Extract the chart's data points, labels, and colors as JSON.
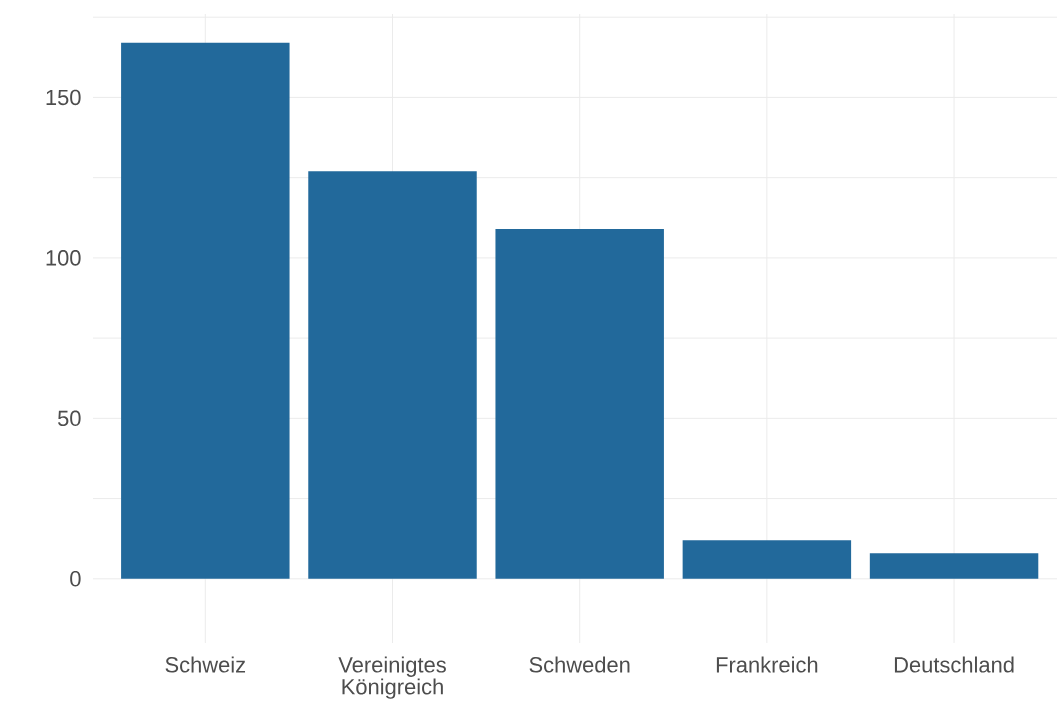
{
  "chart_data": {
    "type": "bar",
    "categories": [
      "Schweiz",
      "Vereinigtes Königreich",
      "Schweden",
      "Frankreich",
      "Deutschland"
    ],
    "values": [
      167,
      127,
      109,
      12,
      8
    ],
    "color": "#22699b",
    "ylim": [
      -20,
      176
    ],
    "yticks": [
      0,
      {
        "value": 25,
        "label": null
      },
      50,
      {
        "value": 75,
        "label": null
      },
      100,
      {
        "value": 125,
        "label": null
      },
      150,
      {
        "value": 175,
        "label": null
      }
    ],
    "grid": true
  }
}
